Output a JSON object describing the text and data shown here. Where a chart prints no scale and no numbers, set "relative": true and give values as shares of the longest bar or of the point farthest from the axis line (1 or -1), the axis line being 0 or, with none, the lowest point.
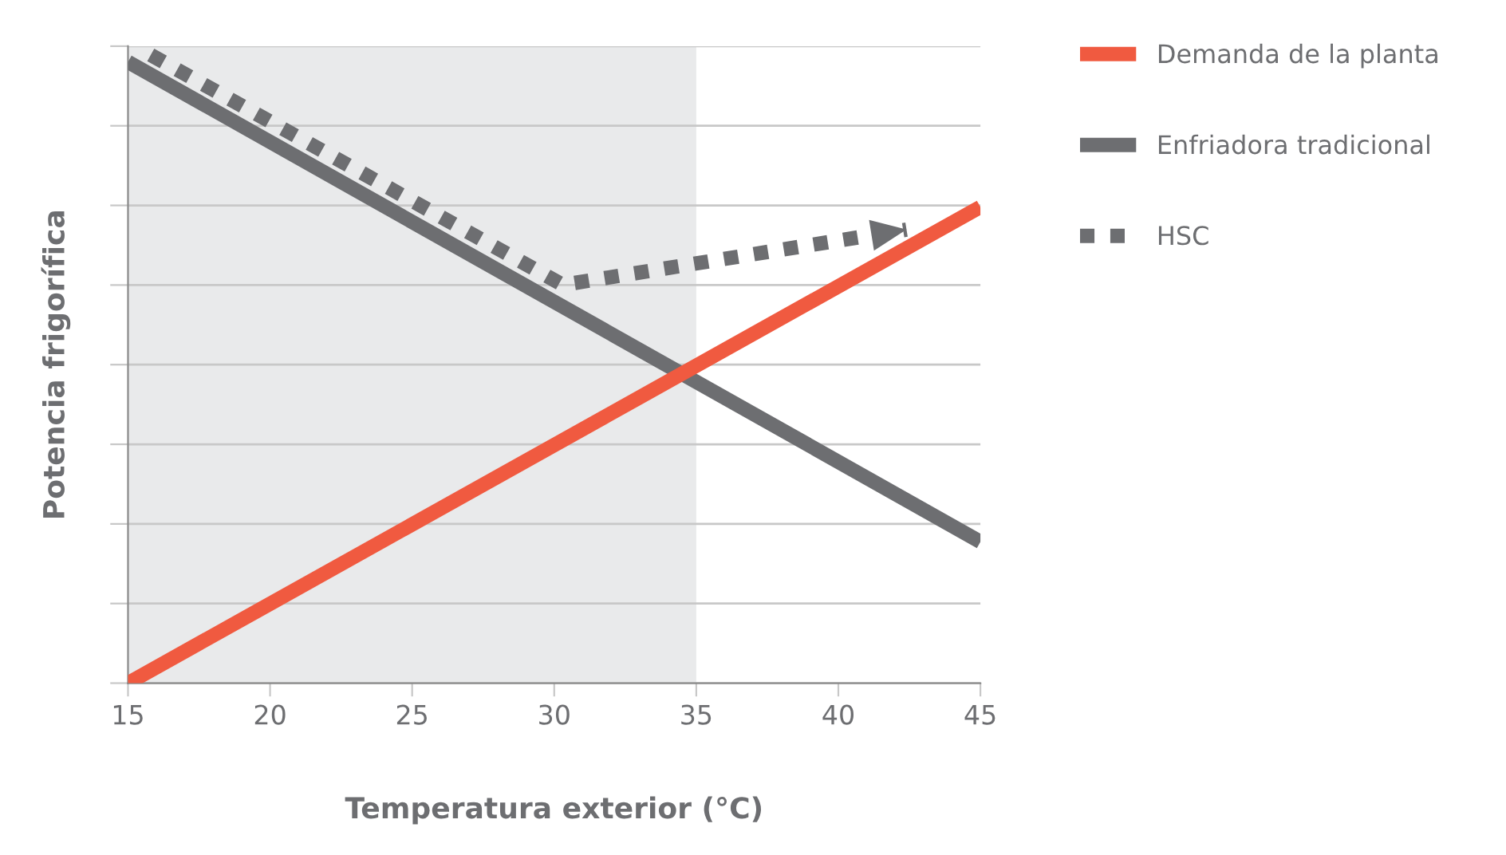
{
  "chart_data": {
    "type": "line",
    "relative": true,
    "xlabel": "Temperatura exterior (°C)",
    "ylabel": "Potencia frigorífica",
    "xlim": [
      15,
      45
    ],
    "xticks": [
      15,
      20,
      25,
      30,
      35,
      40,
      45
    ],
    "grid": "y",
    "legend": "top right",
    "tick_labels": "x",
    "bands": [
      {
        "axis": "x",
        "from": 15,
        "to": 35,
        "color": "#e9eaeb"
      }
    ],
    "series": [
      {
        "name": "Demanda de la planta",
        "color": "#f05a40",
        "line_style": "solid",
        "x": [
          15,
          45
        ],
        "values": [
          0,
          0.758
        ]
      },
      {
        "name": "Enfriadora tradicional",
        "color": "#6d6e71",
        "line_style": "solid",
        "x": [
          15,
          45
        ],
        "values": [
          0.989,
          0.225
        ]
      },
      {
        "name": "HSC",
        "color": "#6d6e71",
        "line_style": "dotted",
        "x": [
          15.8,
          30.3,
          42.4
        ],
        "values": [
          1,
          0.634,
          0.722
        ]
      }
    ]
  }
}
